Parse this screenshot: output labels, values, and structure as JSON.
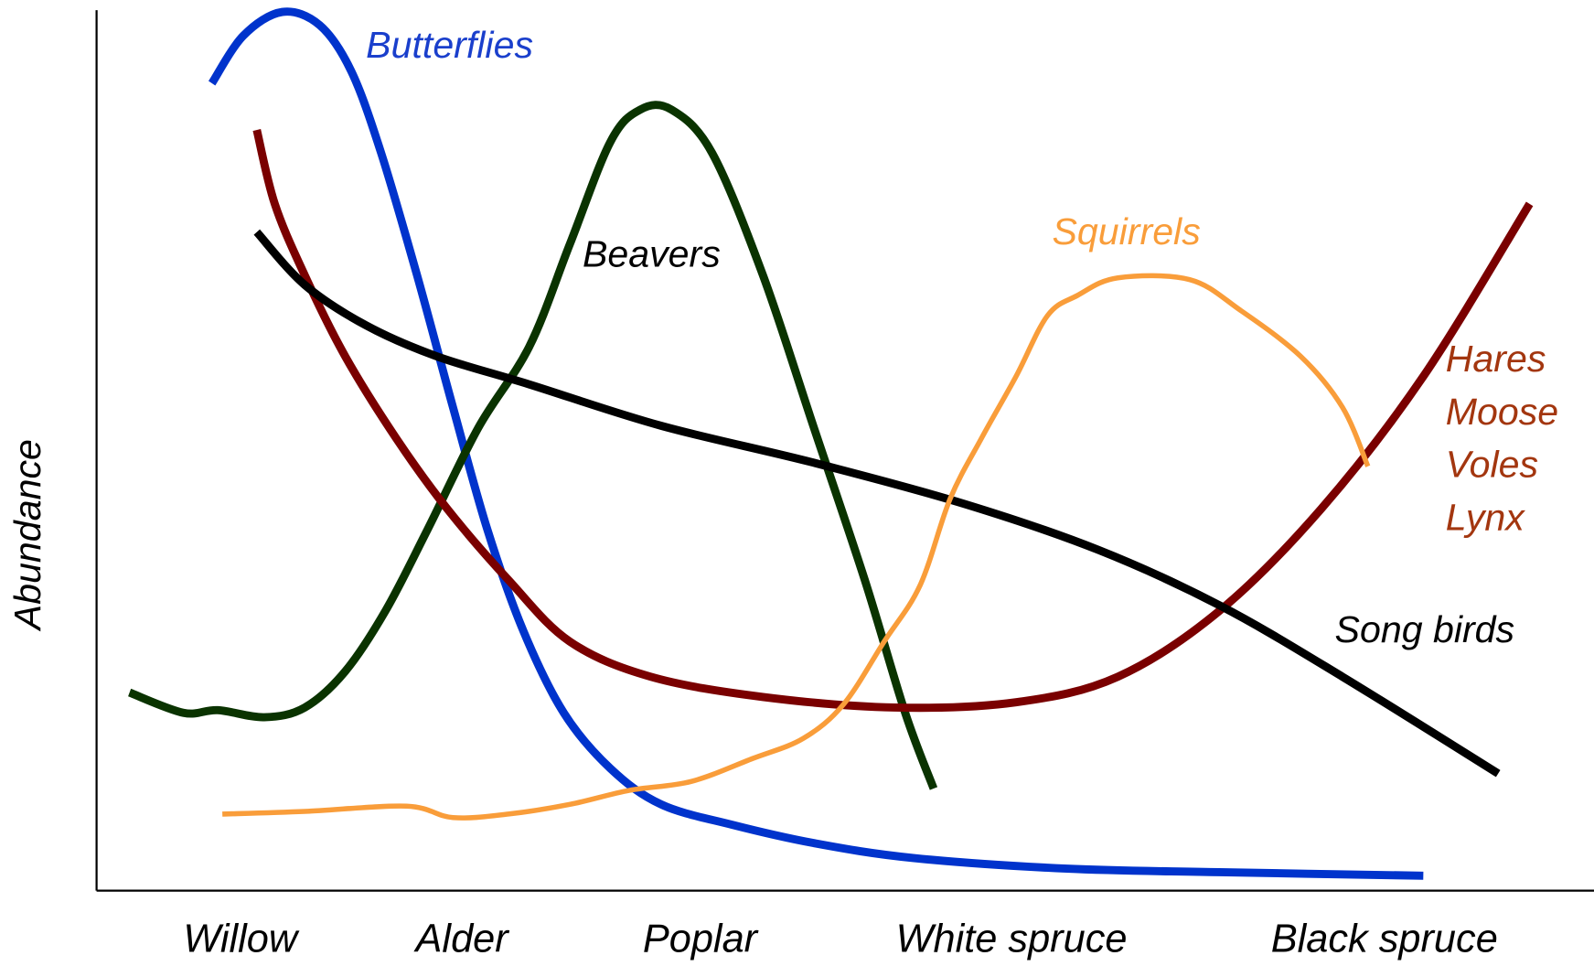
{
  "chart_data": {
    "type": "line",
    "y_label": "Abundance",
    "xlim": [
      0,
      100
    ],
    "ylim": [
      0,
      100
    ],
    "xticks": [
      {
        "value": 9.6,
        "label": "Willow"
      },
      {
        "value": 24.4,
        "label": "Alder"
      },
      {
        "value": 40.3,
        "label": "Poplar"
      },
      {
        "value": 61.1,
        "label": "White spruce"
      },
      {
        "value": 86.0,
        "label": "Black spruce"
      }
    ],
    "series": [
      {
        "name": [
          "Butterflies"
        ],
        "color": "#0033cc",
        "label_color": "#1a3fcc",
        "x": [
          7.7,
          9.8,
          12.4,
          14.9,
          17.0,
          19.0,
          21.4,
          23.8,
          26.1,
          28.5,
          31.2,
          34.3,
          37.7,
          42.4,
          47.9,
          54.6,
          64.8,
          75.0,
          88.6
        ],
        "values": [
          91.7,
          97.1,
          99.8,
          98.3,
          93.1,
          83.8,
          69.9,
          54.9,
          41.0,
          29.5,
          20.2,
          13.9,
          9.8,
          7.5,
          5.4,
          3.7,
          2.5,
          2.1,
          1.7
        ]
      },
      {
        "name": [
          "Beavers"
        ],
        "color": "#0a3300",
        "label_color": "#000000",
        "x": [
          2.2,
          5.8,
          8.1,
          11.2,
          13.9,
          16.6,
          19.3,
          22.1,
          25.5,
          28.9,
          31.6,
          34.3,
          36.3,
          38.4,
          41.1,
          44.5,
          47.9,
          51.3,
          54.0,
          55.9
        ],
        "values": [
          22.5,
          20.2,
          20.5,
          19.7,
          20.8,
          24.9,
          31.8,
          41.0,
          52.6,
          61.8,
          73.4,
          85.0,
          88.7,
          88.7,
          83.8,
          69.9,
          52.6,
          35.3,
          20.2,
          11.6
        ]
      },
      {
        "name": [
          "Hares",
          "Moose",
          "Voles",
          "Lynx"
        ],
        "color": "#7a0000",
        "label_color": "#a3360f",
        "x": [
          10.7,
          11.9,
          13.9,
          16.6,
          20.0,
          23.4,
          27.5,
          31.6,
          37.0,
          44.5,
          53.3,
          61.4,
          68.2,
          75.0,
          81.8,
          88.6,
          95.7
        ],
        "values": [
          86.4,
          78.0,
          69.9,
          60.7,
          51.4,
          43.4,
          35.3,
          28.3,
          24.3,
          22.0,
          20.8,
          21.4,
          24.3,
          31.8,
          43.4,
          58.4,
          78.0
        ]
      },
      {
        "name": [
          "Song birds"
        ],
        "color": "#000000",
        "label_color": "#000000",
        "x": [
          10.7,
          13.9,
          18.0,
          22.7,
          28.9,
          37.7,
          47.9,
          58.0,
          66.9,
          75.0,
          83.2,
          93.6
        ],
        "values": [
          74.8,
          68.8,
          64.2,
          60.7,
          57.5,
          52.8,
          48.6,
          43.9,
          38.7,
          32.4,
          24.3,
          13.3
        ]
      },
      {
        "name": [
          "Squirrels"
        ],
        "color": "#f99d3a",
        "label_color": "#f99d3a",
        "x": [
          8.4,
          13.9,
          20.7,
          23.8,
          27.5,
          31.6,
          35.6,
          39.7,
          43.8,
          47.2,
          49.9,
          52.6,
          55.0,
          57.0,
          59.1,
          61.4,
          63.5,
          65.5,
          68.2,
          73.0,
          76.4,
          80.4,
          83.2,
          84.9
        ],
        "values": [
          8.7,
          9.0,
          9.6,
          8.3,
          8.7,
          9.8,
          11.4,
          12.4,
          15.0,
          17.3,
          21.2,
          28.3,
          34.7,
          44.5,
          51.4,
          58.4,
          65.3,
          67.6,
          69.6,
          69.4,
          65.9,
          60.7,
          54.9,
          48.2
        ]
      }
    ]
  }
}
